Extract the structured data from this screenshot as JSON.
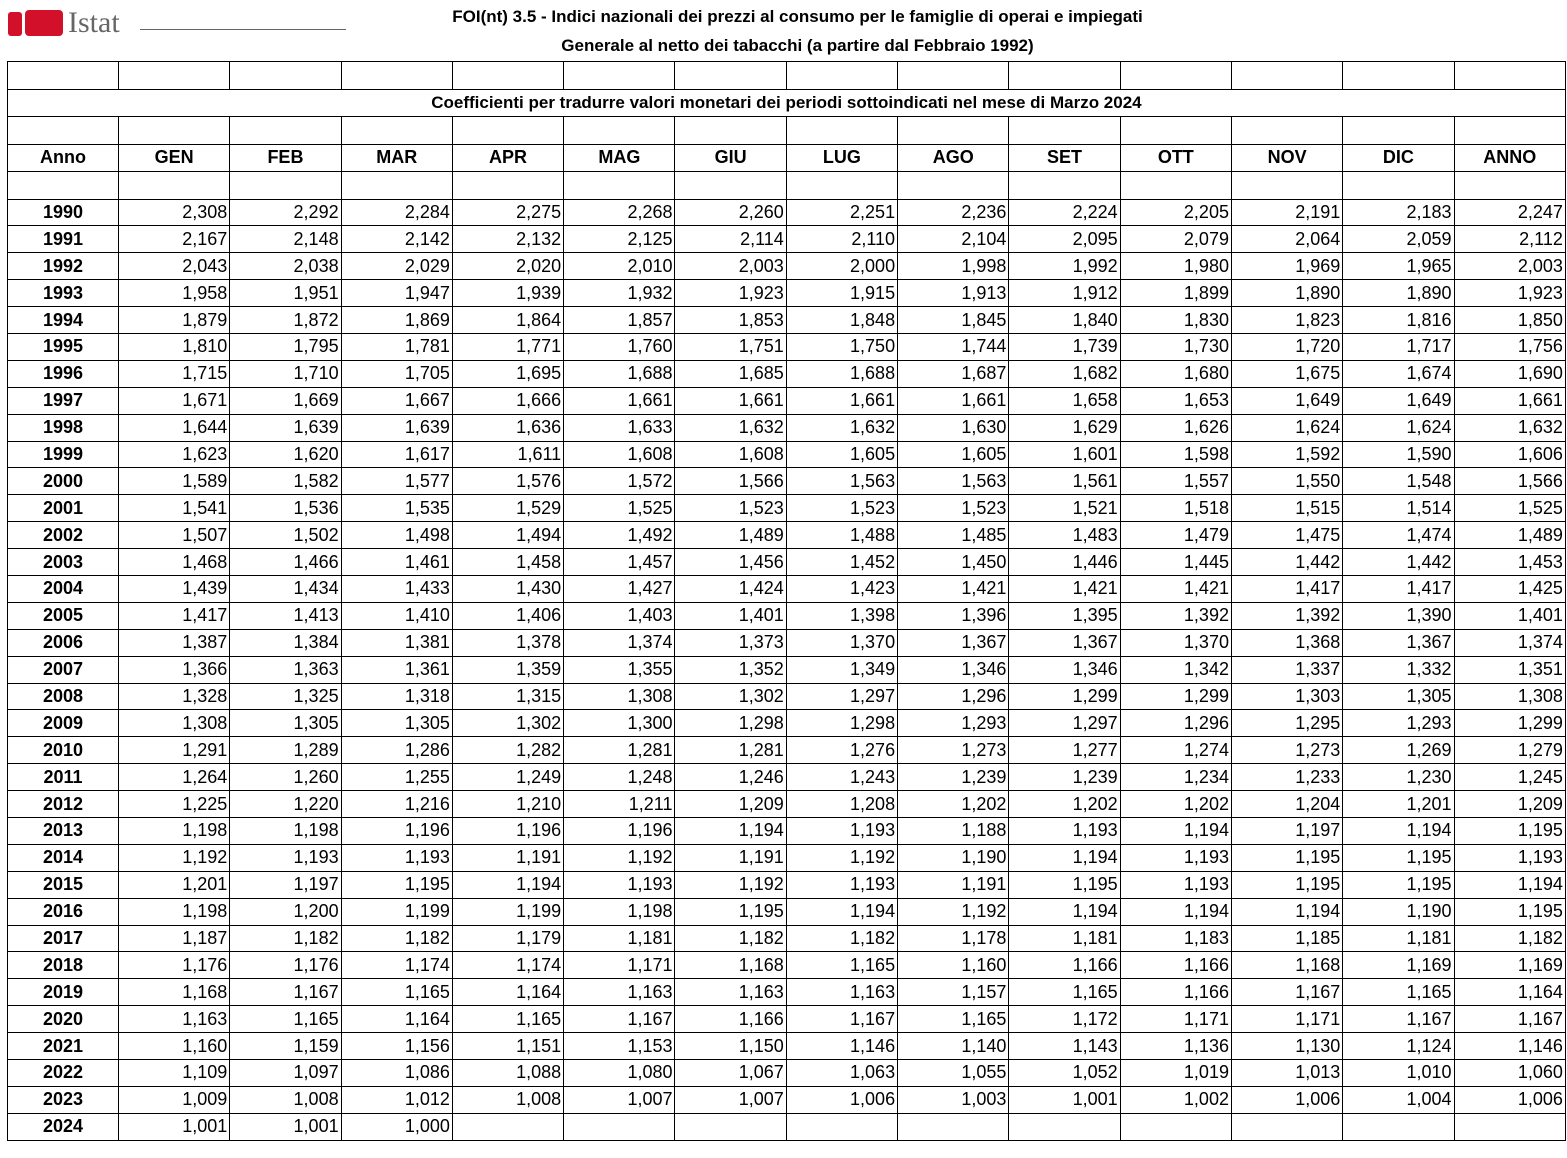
{
  "header": {
    "logo": "Istat",
    "title": "FOI(nt) 3.5 - Indici nazionali dei prezzi al consumo per le famiglie di operai e impiegati",
    "subtitle": "Generale al netto dei tabacchi (a partire dal Febbraio 1992)"
  },
  "table": {
    "caption": "Coefficienti per tradurre valori monetari dei periodi sottoindicati nel mese di Marzo 2024",
    "columns": [
      "Anno",
      "GEN",
      "FEB",
      "MAR",
      "APR",
      "MAG",
      "GIU",
      "LUG",
      "AGO",
      "SET",
      "OTT",
      "NOV",
      "DIC",
      "ANNO"
    ],
    "rows": [
      [
        "1990",
        "2,308",
        "2,292",
        "2,284",
        "2,275",
        "2,268",
        "2,260",
        "2,251",
        "2,236",
        "2,224",
        "2,205",
        "2,191",
        "2,183",
        "2,247"
      ],
      [
        "1991",
        "2,167",
        "2,148",
        "2,142",
        "2,132",
        "2,125",
        "2,114",
        "2,110",
        "2,104",
        "2,095",
        "2,079",
        "2,064",
        "2,059",
        "2,112"
      ],
      [
        "1992",
        "2,043",
        "2,038",
        "2,029",
        "2,020",
        "2,010",
        "2,003",
        "2,000",
        "1,998",
        "1,992",
        "1,980",
        "1,969",
        "1,965",
        "2,003"
      ],
      [
        "1993",
        "1,958",
        "1,951",
        "1,947",
        "1,939",
        "1,932",
        "1,923",
        "1,915",
        "1,913",
        "1,912",
        "1,899",
        "1,890",
        "1,890",
        "1,923"
      ],
      [
        "1994",
        "1,879",
        "1,872",
        "1,869",
        "1,864",
        "1,857",
        "1,853",
        "1,848",
        "1,845",
        "1,840",
        "1,830",
        "1,823",
        "1,816",
        "1,850"
      ],
      [
        "1995",
        "1,810",
        "1,795",
        "1,781",
        "1,771",
        "1,760",
        "1,751",
        "1,750",
        "1,744",
        "1,739",
        "1,730",
        "1,720",
        "1,717",
        "1,756"
      ],
      [
        "1996",
        "1,715",
        "1,710",
        "1,705",
        "1,695",
        "1,688",
        "1,685",
        "1,688",
        "1,687",
        "1,682",
        "1,680",
        "1,675",
        "1,674",
        "1,690"
      ],
      [
        "1997",
        "1,671",
        "1,669",
        "1,667",
        "1,666",
        "1,661",
        "1,661",
        "1,661",
        "1,661",
        "1,658",
        "1,653",
        "1,649",
        "1,649",
        "1,661"
      ],
      [
        "1998",
        "1,644",
        "1,639",
        "1,639",
        "1,636",
        "1,633",
        "1,632",
        "1,632",
        "1,630",
        "1,629",
        "1,626",
        "1,624",
        "1,624",
        "1,632"
      ],
      [
        "1999",
        "1,623",
        "1,620",
        "1,617",
        "1,611",
        "1,608",
        "1,608",
        "1,605",
        "1,605",
        "1,601",
        "1,598",
        "1,592",
        "1,590",
        "1,606"
      ],
      [
        "2000",
        "1,589",
        "1,582",
        "1,577",
        "1,576",
        "1,572",
        "1,566",
        "1,563",
        "1,563",
        "1,561",
        "1,557",
        "1,550",
        "1,548",
        "1,566"
      ],
      [
        "2001",
        "1,541",
        "1,536",
        "1,535",
        "1,529",
        "1,525",
        "1,523",
        "1,523",
        "1,523",
        "1,521",
        "1,518",
        "1,515",
        "1,514",
        "1,525"
      ],
      [
        "2002",
        "1,507",
        "1,502",
        "1,498",
        "1,494",
        "1,492",
        "1,489",
        "1,488",
        "1,485",
        "1,483",
        "1,479",
        "1,475",
        "1,474",
        "1,489"
      ],
      [
        "2003",
        "1,468",
        "1,466",
        "1,461",
        "1,458",
        "1,457",
        "1,456",
        "1,452",
        "1,450",
        "1,446",
        "1,445",
        "1,442",
        "1,442",
        "1,453"
      ],
      [
        "2004",
        "1,439",
        "1,434",
        "1,433",
        "1,430",
        "1,427",
        "1,424",
        "1,423",
        "1,421",
        "1,421",
        "1,421",
        "1,417",
        "1,417",
        "1,425"
      ],
      [
        "2005",
        "1,417",
        "1,413",
        "1,410",
        "1,406",
        "1,403",
        "1,401",
        "1,398",
        "1,396",
        "1,395",
        "1,392",
        "1,392",
        "1,390",
        "1,401"
      ],
      [
        "2006",
        "1,387",
        "1,384",
        "1,381",
        "1,378",
        "1,374",
        "1,373",
        "1,370",
        "1,367",
        "1,367",
        "1,370",
        "1,368",
        "1,367",
        "1,374"
      ],
      [
        "2007",
        "1,366",
        "1,363",
        "1,361",
        "1,359",
        "1,355",
        "1,352",
        "1,349",
        "1,346",
        "1,346",
        "1,342",
        "1,337",
        "1,332",
        "1,351"
      ],
      [
        "2008",
        "1,328",
        "1,325",
        "1,318",
        "1,315",
        "1,308",
        "1,302",
        "1,297",
        "1,296",
        "1,299",
        "1,299",
        "1,303",
        "1,305",
        "1,308"
      ],
      [
        "2009",
        "1,308",
        "1,305",
        "1,305",
        "1,302",
        "1,300",
        "1,298",
        "1,298",
        "1,293",
        "1,297",
        "1,296",
        "1,295",
        "1,293",
        "1,299"
      ],
      [
        "2010",
        "1,291",
        "1,289",
        "1,286",
        "1,282",
        "1,281",
        "1,281",
        "1,276",
        "1,273",
        "1,277",
        "1,274",
        "1,273",
        "1,269",
        "1,279"
      ],
      [
        "2011",
        "1,264",
        "1,260",
        "1,255",
        "1,249",
        "1,248",
        "1,246",
        "1,243",
        "1,239",
        "1,239",
        "1,234",
        "1,233",
        "1,230",
        "1,245"
      ],
      [
        "2012",
        "1,225",
        "1,220",
        "1,216",
        "1,210",
        "1,211",
        "1,209",
        "1,208",
        "1,202",
        "1,202",
        "1,202",
        "1,204",
        "1,201",
        "1,209"
      ],
      [
        "2013",
        "1,198",
        "1,198",
        "1,196",
        "1,196",
        "1,196",
        "1,194",
        "1,193",
        "1,188",
        "1,193",
        "1,194",
        "1,197",
        "1,194",
        "1,195"
      ],
      [
        "2014",
        "1,192",
        "1,193",
        "1,193",
        "1,191",
        "1,192",
        "1,191",
        "1,192",
        "1,190",
        "1,194",
        "1,193",
        "1,195",
        "1,195",
        "1,193"
      ],
      [
        "2015",
        "1,201",
        "1,197",
        "1,195",
        "1,194",
        "1,193",
        "1,192",
        "1,193",
        "1,191",
        "1,195",
        "1,193",
        "1,195",
        "1,195",
        "1,194"
      ],
      [
        "2016",
        "1,198",
        "1,200",
        "1,199",
        "1,199",
        "1,198",
        "1,195",
        "1,194",
        "1,192",
        "1,194",
        "1,194",
        "1,194",
        "1,190",
        "1,195"
      ],
      [
        "2017",
        "1,187",
        "1,182",
        "1,182",
        "1,179",
        "1,181",
        "1,182",
        "1,182",
        "1,178",
        "1,181",
        "1,183",
        "1,185",
        "1,181",
        "1,182"
      ],
      [
        "2018",
        "1,176",
        "1,176",
        "1,174",
        "1,174",
        "1,171",
        "1,168",
        "1,165",
        "1,160",
        "1,166",
        "1,166",
        "1,168",
        "1,169",
        "1,169"
      ],
      [
        "2019",
        "1,168",
        "1,167",
        "1,165",
        "1,164",
        "1,163",
        "1,163",
        "1,163",
        "1,157",
        "1,165",
        "1,166",
        "1,167",
        "1,165",
        "1,164"
      ],
      [
        "2020",
        "1,163",
        "1,165",
        "1,164",
        "1,165",
        "1,167",
        "1,166",
        "1,167",
        "1,165",
        "1,172",
        "1,171",
        "1,171",
        "1,167",
        "1,167"
      ],
      [
        "2021",
        "1,160",
        "1,159",
        "1,156",
        "1,151",
        "1,153",
        "1,150",
        "1,146",
        "1,140",
        "1,143",
        "1,136",
        "1,130",
        "1,124",
        "1,146"
      ],
      [
        "2022",
        "1,109",
        "1,097",
        "1,086",
        "1,088",
        "1,080",
        "1,067",
        "1,063",
        "1,055",
        "1,052",
        "1,019",
        "1,013",
        "1,010",
        "1,060"
      ],
      [
        "2023",
        "1,009",
        "1,008",
        "1,012",
        "1,008",
        "1,007",
        "1,007",
        "1,006",
        "1,003",
        "1,001",
        "1,002",
        "1,006",
        "1,004",
        "1,006"
      ],
      [
        "2024",
        "1,001",
        "1,001",
        "1,000"
      ]
    ]
  }
}
